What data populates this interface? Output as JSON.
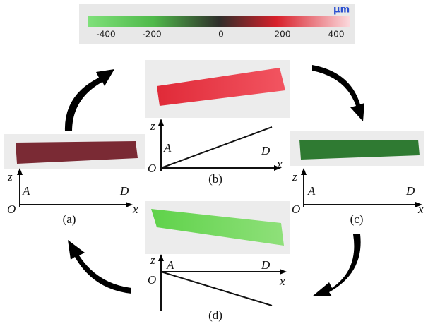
{
  "colorbar": {
    "unit": "μm",
    "ticks": [
      "-400",
      "-200",
      "0",
      "200",
      "400"
    ]
  },
  "panels": [
    {
      "label": "(a)",
      "z": "z",
      "x": "x",
      "origin": "O",
      "a": "A",
      "d": "D"
    },
    {
      "label": "(b)",
      "z": "z",
      "x": "x",
      "origin": "O",
      "a": "A",
      "d": "D"
    },
    {
      "label": "(c)",
      "z": "z",
      "x": "x",
      "origin": "O",
      "a": "A",
      "d": "D"
    },
    {
      "label": "(d)",
      "z": "z",
      "x": "x",
      "origin": "O",
      "a": "A",
      "d": "D"
    }
  ]
}
